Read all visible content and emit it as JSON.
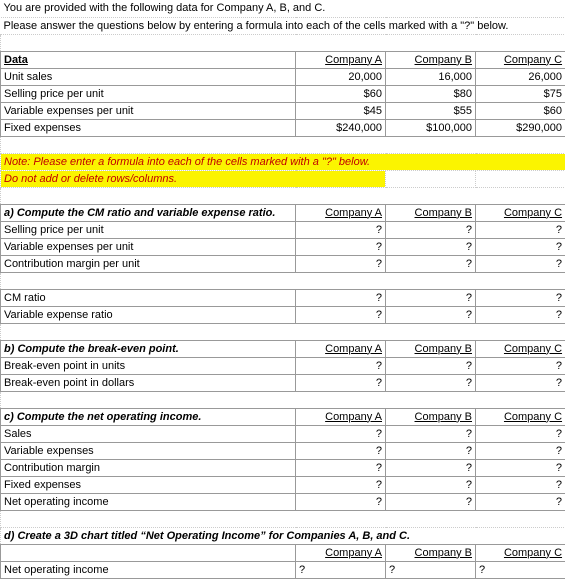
{
  "intro": {
    "line1": "You are provided with the following data for Company A, B, and C.",
    "line2": "Please answer the questions below by entering a formula into each of the cells marked with a \"?\" below."
  },
  "headers": {
    "data": "Data",
    "a": "Company A",
    "b": "Company B",
    "c": "Company C"
  },
  "data_rows": {
    "unit_sales": {
      "label": "Unit sales",
      "a": "20,000",
      "b": "16,000",
      "c": "26,000"
    },
    "sell_price": {
      "label": "Selling price per unit",
      "a": "$60",
      "b": "$80",
      "c": "$75"
    },
    "var_exp_unit": {
      "label": "Variable expenses per unit",
      "a": "$45",
      "b": "$55",
      "c": "$60"
    },
    "fixed_exp": {
      "label": "Fixed expenses",
      "a": "$240,000",
      "b": "$100,000",
      "c": "$290,000"
    }
  },
  "note": {
    "line1": "Note: Please enter a formula into each of the cells marked with a \"?\" below.",
    "line2": "Do not add or delete rows/columns."
  },
  "section_a": {
    "title": "a) Compute the CM ratio and variable expense ratio.",
    "rows": {
      "spu": {
        "label": "Selling price per unit",
        "a": "?",
        "b": "?",
        "c": "?"
      },
      "veu": {
        "label": "Variable expenses per unit",
        "a": "?",
        "b": "?",
        "c": "?"
      },
      "cmu": {
        "label": "Contribution margin per unit",
        "a": "?",
        "b": "?",
        "c": "?"
      },
      "cmr": {
        "label": "CM ratio",
        "a": "?",
        "b": "?",
        "c": "?"
      },
      "ver": {
        "label": "Variable expense ratio",
        "a": "?",
        "b": "?",
        "c": "?"
      }
    }
  },
  "section_b": {
    "title": "b) Compute the break-even point.",
    "rows": {
      "beu": {
        "label": "Break-even point in units",
        "a": "?",
        "b": "?",
        "c": "?"
      },
      "bed": {
        "label": "Break-even point in dollars",
        "a": "?",
        "b": "?",
        "c": "?"
      }
    }
  },
  "section_c": {
    "title": "c) Compute the net operating income.",
    "rows": {
      "sales": {
        "label": "Sales",
        "a": "?",
        "b": "?",
        "c": "?"
      },
      "vexp": {
        "label": "Variable expenses",
        "a": "?",
        "b": "?",
        "c": "?"
      },
      "cm": {
        "label": "Contribution margin",
        "a": "?",
        "b": "?",
        "c": "?"
      },
      "fexp": {
        "label": "Fixed expenses",
        "a": "?",
        "b": "?",
        "c": "?"
      },
      "noi": {
        "label": "Net operating income",
        "a": "?",
        "b": "?",
        "c": "?"
      }
    }
  },
  "section_d": {
    "title": "d) Create a 3D chart titled “Net Operating Income” for Companies A, B, and C.",
    "rows": {
      "noi": {
        "label": "Net operating income",
        "a": "?",
        "b": "?",
        "c": "?"
      }
    }
  }
}
